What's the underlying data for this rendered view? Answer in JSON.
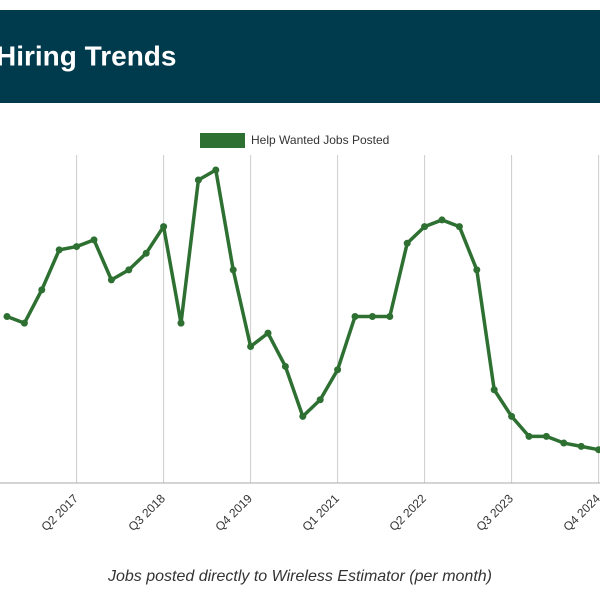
{
  "chart_data": {
    "type": "line",
    "title": "Hiring Trends",
    "caption": "Jobs posted directly to Wireless Estimator (per month)",
    "categories": [
      null,
      null,
      null,
      null,
      "Q2 2017",
      null,
      null,
      null,
      null,
      "Q3 2018",
      null,
      null,
      null,
      null,
      "Q4 2019",
      null,
      null,
      null,
      null,
      "Q1 2021",
      null,
      null,
      null,
      null,
      "Q2 2022",
      null,
      null,
      null,
      null,
      "Q3 2023",
      null,
      null,
      null,
      null,
      "Q4 2024"
    ],
    "series": [
      {
        "name": "Help Wanted Jobs Posted",
        "color": "#2e7032",
        "values": [
          50,
          48,
          58,
          70,
          71,
          73,
          61,
          64,
          69,
          77,
          48,
          91,
          94,
          64,
          41,
          45,
          35,
          20,
          25,
          34,
          50,
          50,
          50,
          72,
          77,
          79,
          77,
          64,
          28,
          20,
          14,
          14,
          12,
          11,
          10
        ]
      }
    ],
    "ylim": [
      0,
      100
    ],
    "grid": true,
    "legend": "top"
  }
}
